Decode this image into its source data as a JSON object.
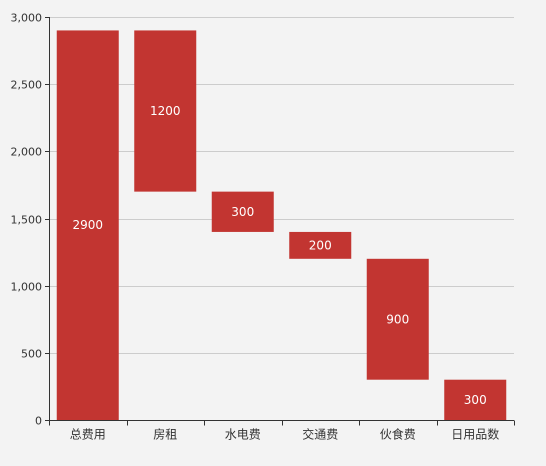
{
  "chart_data": {
    "type": "bar",
    "subtype": "waterfall",
    "categories": [
      "总费用",
      "房租",
      "水电费",
      "交通费",
      "伙食费",
      "日用品数"
    ],
    "values": [
      2900,
      1200,
      300,
      200,
      900,
      300
    ],
    "bases": [
      0,
      1700,
      1400,
      1200,
      300,
      0
    ],
    "value_labels": [
      "2900",
      "1200",
      "300",
      "200",
      "900",
      "300"
    ],
    "ylim": [
      0,
      3000
    ],
    "yticks": [
      0,
      500,
      1000,
      1500,
      2000,
      2500,
      3000
    ],
    "ytick_labels": [
      "0",
      "500",
      "1,000",
      "1,500",
      "2,000",
      "2,500",
      "3,000"
    ],
    "grid": true,
    "legend": "none",
    "colors": {
      "bar": "#c23531",
      "grid": "#cccccc",
      "axis": "#333333",
      "background": "#f3f3f3"
    }
  }
}
